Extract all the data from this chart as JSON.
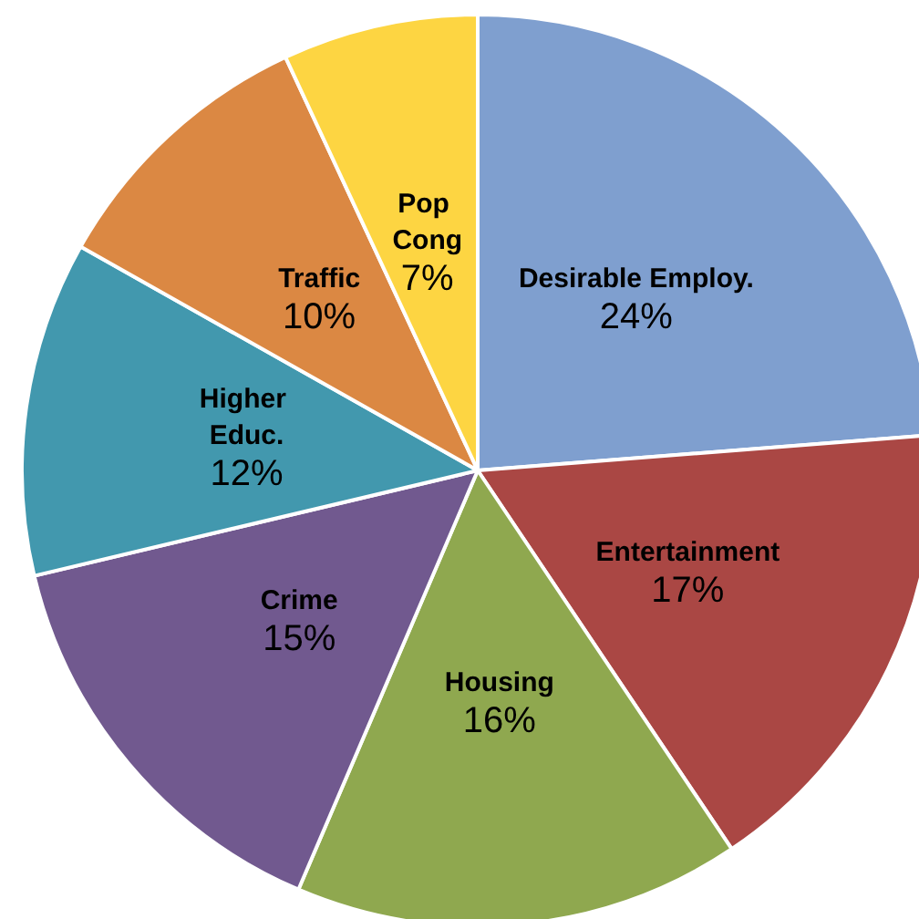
{
  "chart_data": {
    "type": "pie",
    "categories": [
      "Desirable Employ.",
      "Entertainment",
      "Housing",
      "Crime",
      "Higher Educ.",
      "Traffic",
      "Pop Cong"
    ],
    "values": [
      24,
      17,
      16,
      15,
      12,
      10,
      7
    ],
    "colors": [
      "#7f9fcf",
      "#aa4744",
      "#8fa84f",
      "#71598f",
      "#4298ae",
      "#db8843",
      "#fdd542"
    ],
    "value_labels": [
      "24%",
      "17%",
      "16%",
      "15%",
      "12%",
      "10%",
      "7%"
    ],
    "legend": false
  }
}
